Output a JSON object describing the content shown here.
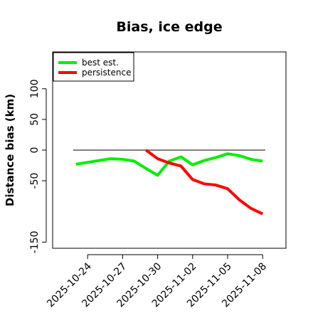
{
  "chart_data": {
    "type": "line",
    "title": "Bias, ice edge",
    "xlabel": "",
    "ylabel": "Distance bias (km)",
    "x_ticks": [
      "2025-10-24",
      "2025-10-27",
      "2025-10-30",
      "2025-11-02",
      "2025-11-05",
      "2025-11-08"
    ],
    "y_ticks": [
      -150,
      -50,
      0,
      50,
      100
    ],
    "ylim": [
      -160,
      160
    ],
    "xlim": [
      "2025-10-21",
      "2025-11-10"
    ],
    "grid": false,
    "legend_position": "top-left",
    "reference_line": {
      "y": 0,
      "color": "#555555"
    },
    "series": [
      {
        "name": "best est.",
        "color": "#00ee00",
        "x": [
          "2025-10-23",
          "2025-10-24",
          "2025-10-25",
          "2025-10-26",
          "2025-10-27",
          "2025-10-28",
          "2025-10-29",
          "2025-10-30",
          "2025-10-31",
          "2025-11-01",
          "2025-11-02",
          "2025-11-03",
          "2025-11-04",
          "2025-11-05",
          "2025-11-06",
          "2025-11-07",
          "2025-11-08"
        ],
        "values": [
          -23,
          -20,
          -17,
          -14,
          -15,
          -18,
          -30,
          -41,
          -18,
          -11,
          -24,
          -17,
          -12,
          -6,
          -9,
          -15,
          -18
        ]
      },
      {
        "name": "persistence",
        "color": "#ff0000",
        "x": [
          "2025-10-29",
          "2025-10-30",
          "2025-10-31",
          "2025-11-01",
          "2025-11-02",
          "2025-11-03",
          "2025-11-04",
          "2025-11-05",
          "2025-11-06",
          "2025-11-07",
          "2025-11-08"
        ],
        "values": [
          0,
          -14,
          -21,
          -26,
          -48,
          -55,
          -57,
          -63,
          -81,
          -95,
          -104
        ]
      }
    ]
  }
}
